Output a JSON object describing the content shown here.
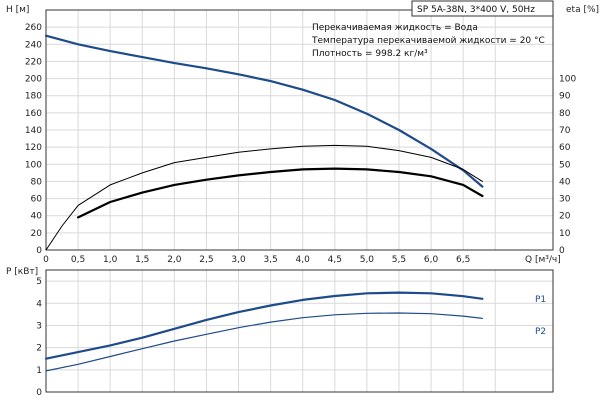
{
  "chart_data": [
    {
      "type": "line",
      "title": "SP 5A-38N, 3*400 V, 50Hz",
      "xlabel": "Q [м³/ч]",
      "ylabel": "H [м]",
      "y2label": "eta [%]",
      "xlim": [
        0,
        7.9
      ],
      "ylim": [
        0,
        280
      ],
      "y2lim": [
        0,
        140
      ],
      "x_ticks": [
        0,
        0.5,
        1.0,
        1.5,
        2.0,
        2.5,
        3.0,
        3.5,
        4.0,
        4.5,
        5.0,
        5.5,
        6.0,
        6.5,
        7.0
      ],
      "x_tick_labels": [
        "0",
        "0,5",
        "1,0",
        "1,5",
        "2,0",
        "2,5",
        "3,0",
        "3,5",
        "4,0",
        "4,5",
        "5,0",
        "5,5",
        "6,0",
        "6,5",
        "Q [м³/ч]"
      ],
      "y_ticks": [
        0,
        20,
        40,
        60,
        80,
        100,
        120,
        140,
        160,
        180,
        200,
        220,
        240,
        260
      ],
      "y2_ticks": [
        0,
        10,
        20,
        30,
        40,
        50,
        60,
        70,
        80,
        90,
        100
      ],
      "grid": true,
      "annotations": [
        "Перекачиваемая жидкость = Вода",
        "Температура перекачиваемой жидкости = 20 °C",
        "Плотность = 998.2 кг/м³"
      ],
      "series": [
        {
          "axis": "left",
          "color": "#1e4b8a",
          "points": [
            [
              0,
              250
            ],
            [
              0.5,
              240
            ],
            [
              1.0,
              232
            ],
            [
              1.5,
              225
            ],
            [
              2.0,
              218
            ],
            [
              2.5,
              212
            ],
            [
              3.0,
              205
            ],
            [
              3.5,
              197
            ],
            [
              4.0,
              187
            ],
            [
              4.5,
              175
            ],
            [
              5.0,
              159
            ],
            [
              5.5,
              140
            ],
            [
              6.0,
              118
            ],
            [
              6.5,
              93
            ],
            [
              6.8,
              74
            ]
          ]
        },
        {
          "axis": "right",
          "color": "#000000",
          "points": [
            [
              0,
              0
            ],
            [
              0.25,
              14
            ],
            [
              0.5,
              26
            ],
            [
              1.0,
              38
            ],
            [
              1.5,
              45
            ],
            [
              2.0,
              51
            ],
            [
              2.5,
              54
            ],
            [
              3.0,
              57
            ],
            [
              3.5,
              59
            ],
            [
              4.0,
              60.5
            ],
            [
              4.5,
              61
            ],
            [
              5.0,
              60.5
            ],
            [
              5.5,
              58
            ],
            [
              6.0,
              54
            ],
            [
              6.5,
              47
            ],
            [
              6.8,
              40
            ]
          ]
        },
        {
          "axis": "left",
          "color": "#000000",
          "points": [
            [
              0.5,
              38
            ],
            [
              1.0,
              56
            ],
            [
              1.5,
              67
            ],
            [
              2.0,
              76
            ],
            [
              2.5,
              82
            ],
            [
              3.0,
              87
            ],
            [
              3.5,
              91
            ],
            [
              4.0,
              94
            ],
            [
              4.5,
              95
            ],
            [
              5.0,
              94
            ],
            [
              5.5,
              91
            ],
            [
              6.0,
              86
            ],
            [
              6.5,
              76
            ],
            [
              6.8,
              63
            ]
          ]
        }
      ]
    },
    {
      "type": "line",
      "xlabel": "",
      "ylabel": "P [кВт]",
      "xlim": [
        0,
        7.9
      ],
      "ylim": [
        0,
        5.5
      ],
      "y_ticks": [
        0,
        1,
        2,
        3,
        4,
        5
      ],
      "grid": true,
      "series": [
        {
          "name": "P1",
          "color": "#1e4b8a",
          "points": [
            [
              0,
              1.5
            ],
            [
              0.5,
              1.8
            ],
            [
              1.0,
              2.1
            ],
            [
              1.5,
              2.45
            ],
            [
              2.0,
              2.85
            ],
            [
              2.5,
              3.25
            ],
            [
              3.0,
              3.6
            ],
            [
              3.5,
              3.9
            ],
            [
              4.0,
              4.15
            ],
            [
              4.5,
              4.33
            ],
            [
              5.0,
              4.45
            ],
            [
              5.5,
              4.48
            ],
            [
              6.0,
              4.45
            ],
            [
              6.5,
              4.32
            ],
            [
              6.8,
              4.2
            ]
          ]
        },
        {
          "name": "P2",
          "color": "#1e4b8a",
          "points": [
            [
              0,
              0.95
            ],
            [
              0.5,
              1.25
            ],
            [
              1.0,
              1.6
            ],
            [
              1.5,
              1.95
            ],
            [
              2.0,
              2.3
            ],
            [
              2.5,
              2.6
            ],
            [
              3.0,
              2.9
            ],
            [
              3.5,
              3.15
            ],
            [
              4.0,
              3.35
            ],
            [
              4.5,
              3.48
            ],
            [
              5.0,
              3.55
            ],
            [
              5.5,
              3.56
            ],
            [
              6.0,
              3.53
            ],
            [
              6.5,
              3.42
            ],
            [
              6.8,
              3.32
            ]
          ]
        }
      ]
    }
  ]
}
